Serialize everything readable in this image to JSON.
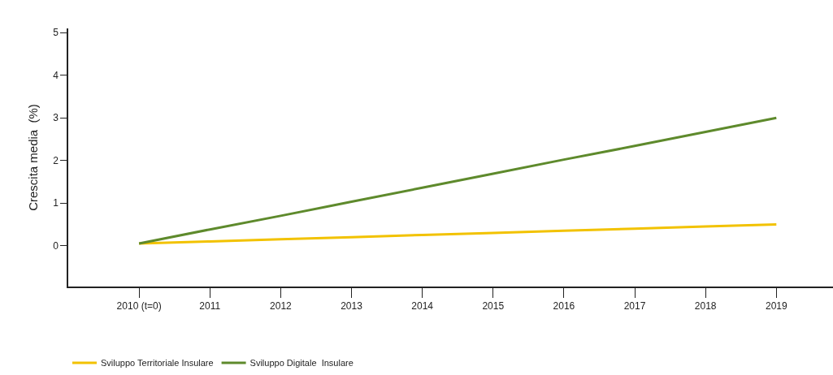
{
  "chart_data": {
    "type": "line",
    "ylabel": "Crescita media  (%)",
    "categories": [
      "2010 (t=0)",
      "2011",
      "2012",
      "2013",
      "2014",
      "2015",
      "2016",
      "2017",
      "2018",
      "2019"
    ],
    "series": [
      {
        "name": "Sviluppo Territoriale Insulare",
        "color": "#f2c200",
        "values": [
          0.05,
          0.1,
          0.15,
          0.2,
          0.25,
          0.3,
          0.35,
          0.4,
          0.45,
          0.5
        ]
      },
      {
        "name": "Sviluppo Digitale  Insulare",
        "color": "#5e8a2c",
        "values": [
          0.05,
          0.38,
          0.7,
          1.03,
          1.36,
          1.69,
          2.02,
          2.34,
          2.67,
          3.0
        ]
      }
    ],
    "ylim": [
      -0.96,
      5.1
    ],
    "yticks": [
      0,
      1,
      2,
      3,
      4,
      5
    ],
    "legend": "bottom left",
    "marker": "none",
    "line_style": "solid"
  }
}
